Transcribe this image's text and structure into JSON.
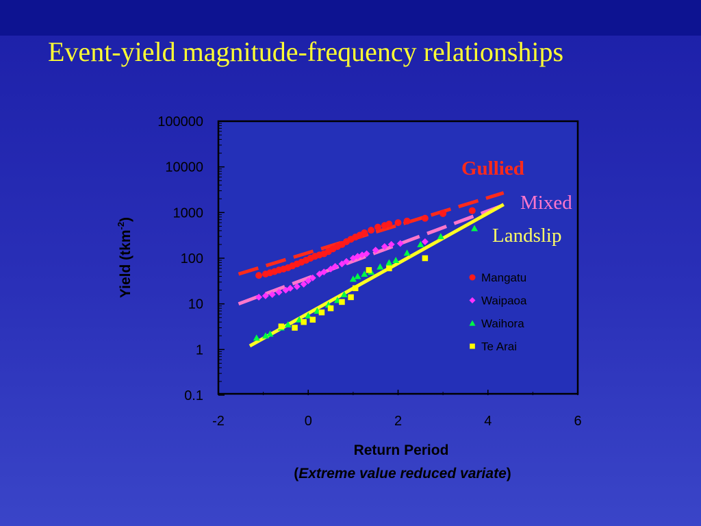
{
  "slide": {
    "title": "Event-yield magnitude-frequency relationships"
  },
  "colors": {
    "background": "#2a30b8",
    "title": "#ffff33",
    "plot_bg": "#2430b8"
  },
  "chart_data": {
    "type": "scatter",
    "title": "",
    "xlabel": "Return Period",
    "xlabel_sub": {
      "open": "(",
      "italic": "Extreme value reduced variate",
      "close": ")"
    },
    "ylabel": "Yield (tkm",
    "ylabel_sup": "-2",
    "ylabel_close": ")",
    "xlim": [
      -2,
      6
    ],
    "ylim": [
      0.1,
      100000
    ],
    "yscale": "log",
    "grid": false,
    "xticks": [
      "-2",
      "0",
      "2",
      "4",
      "6"
    ],
    "yticks": [
      "0.1",
      "1",
      "10",
      "100",
      "1000",
      "10000",
      "100000"
    ],
    "legend": {
      "position": "right"
    },
    "series": [
      {
        "name": "Mangatu",
        "marker": "circle",
        "color": "#ff1a1a",
        "points": [
          [
            -1.1,
            42
          ],
          [
            -0.95,
            45
          ],
          [
            -0.85,
            48
          ],
          [
            -0.75,
            51
          ],
          [
            -0.65,
            55
          ],
          [
            -0.55,
            58
          ],
          [
            -0.45,
            62
          ],
          [
            -0.35,
            68
          ],
          [
            -0.25,
            75
          ],
          [
            -0.15,
            82
          ],
          [
            -0.05,
            90
          ],
          [
            0.05,
            100
          ],
          [
            0.15,
            110
          ],
          [
            0.25,
            118
          ],
          [
            0.35,
            125
          ],
          [
            0.45,
            140
          ],
          [
            0.55,
            160
          ],
          [
            0.65,
            180
          ],
          [
            0.75,
            200
          ],
          [
            0.85,
            230
          ],
          [
            0.95,
            260
          ],
          [
            1.05,
            290
          ],
          [
            1.15,
            320
          ],
          [
            1.25,
            360
          ],
          [
            1.4,
            410
          ],
          [
            1.55,
            480
          ],
          [
            1.7,
            520
          ],
          [
            1.8,
            560
          ],
          [
            2.0,
            600
          ],
          [
            2.2,
            650
          ],
          [
            2.6,
            750
          ],
          [
            3.0,
            950
          ],
          [
            3.65,
            1100
          ]
        ]
      },
      {
        "name": "Waipaoa",
        "marker": "diamond",
        "color": "#ff33ff",
        "points": [
          [
            -1.1,
            14
          ],
          [
            -0.95,
            15
          ],
          [
            -0.8,
            16
          ],
          [
            -0.65,
            18
          ],
          [
            -0.5,
            20
          ],
          [
            -0.4,
            22
          ],
          [
            -0.25,
            24
          ],
          [
            -0.1,
            27
          ],
          [
            0,
            32
          ],
          [
            0.1,
            37
          ],
          [
            0.25,
            45
          ],
          [
            0.35,
            50
          ],
          [
            0.5,
            58
          ],
          [
            0.6,
            66
          ],
          [
            0.75,
            75
          ],
          [
            0.85,
            85
          ],
          [
            1.0,
            100
          ],
          [
            1.1,
            110
          ],
          [
            1.2,
            118
          ],
          [
            1.3,
            125
          ],
          [
            1.5,
            150
          ],
          [
            1.7,
            180
          ],
          [
            1.85,
            200
          ],
          [
            2.05,
            210
          ],
          [
            2.6,
            230
          ]
        ]
      },
      {
        "name": "Waihora",
        "marker": "triangle",
        "color": "#00ff44",
        "points": [
          [
            -1.15,
            1.8
          ],
          [
            -0.95,
            2.0
          ],
          [
            -0.85,
            2.2
          ],
          [
            -0.6,
            3.0
          ],
          [
            -0.45,
            3.5
          ],
          [
            -0.2,
            4.5
          ],
          [
            0.0,
            5.5
          ],
          [
            0.2,
            7
          ],
          [
            0.45,
            9.5
          ],
          [
            0.65,
            12
          ],
          [
            0.8,
            16
          ],
          [
            1.0,
            35
          ],
          [
            1.1,
            40
          ],
          [
            1.25,
            45
          ],
          [
            1.4,
            50
          ],
          [
            1.6,
            65
          ],
          [
            1.8,
            80
          ],
          [
            1.95,
            90
          ],
          [
            2.2,
            130
          ],
          [
            2.5,
            200
          ],
          [
            2.95,
            300
          ],
          [
            3.7,
            450
          ]
        ]
      },
      {
        "name": "Te Arai",
        "marker": "square",
        "color": "#ffff00",
        "points": [
          [
            -0.6,
            3.2
          ],
          [
            -0.3,
            3.0
          ],
          [
            -0.1,
            4.0
          ],
          [
            0.1,
            4.5
          ],
          [
            0.3,
            6.5
          ],
          [
            0.5,
            8
          ],
          [
            0.75,
            11
          ],
          [
            0.95,
            14
          ],
          [
            1.05,
            22
          ],
          [
            1.35,
            55
          ],
          [
            1.8,
            60
          ],
          [
            2.6,
            100
          ]
        ]
      }
    ],
    "fit_lines": [
      {
        "label": "Gullied",
        "color": "#ff2a1a",
        "dash": "long",
        "from": [
          -1.55,
          45
        ],
        "to": [
          4.35,
          2700
        ]
      },
      {
        "label": "Mixed",
        "color": "#ff77cc",
        "dash": "long",
        "from": [
          -1.55,
          10
        ],
        "to": [
          4.3,
          1400
        ]
      },
      {
        "label": "Landslip",
        "color": "#ffff22",
        "dash": "solid",
        "from": [
          -1.3,
          1.2
        ],
        "to": [
          4.35,
          1500
        ]
      }
    ],
    "annotations": {
      "gullied": "Gullied",
      "mixed": "Mixed",
      "landslip": "Landslip"
    }
  }
}
